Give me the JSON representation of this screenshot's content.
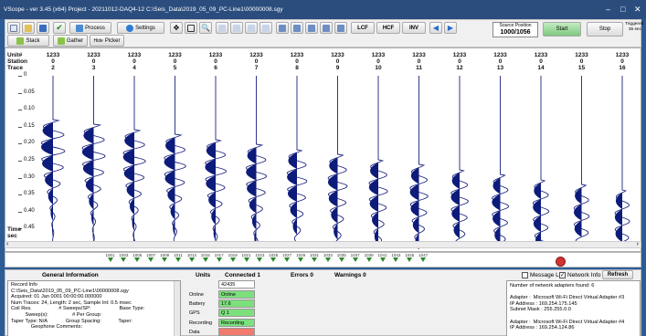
{
  "window": {
    "title": "VScope - ver 3.45 (x64)    Project - 20211012-DAQ4-12    C:\\Seis_Data\\2019_05_09_PC-Line1\\00000008.sgy"
  },
  "toolbar": {
    "process": "Process",
    "settings": "Settings",
    "lcf": "LCF",
    "hcf": "HCF",
    "inv": "INV",
    "source_label": "Source Position",
    "source_value": "1000/1056",
    "start": "Start",
    "stop": "Stop",
    "triggered": "Triggered",
    "triggered_time": "35 sec",
    "stack": "Stack",
    "gather": "Gather",
    "picker": "Picker",
    "hide": "Hide"
  },
  "trace_header": {
    "labels": [
      "Unit#",
      "Station",
      "Trace"
    ],
    "traces": [
      {
        "unit": "1233",
        "station": "0",
        "trace": "2"
      },
      {
        "unit": "1233",
        "station": "0",
        "trace": "3"
      },
      {
        "unit": "1233",
        "station": "0",
        "trace": "4"
      },
      {
        "unit": "1233",
        "station": "0",
        "trace": "5"
      },
      {
        "unit": "1233",
        "station": "0",
        "trace": "6"
      },
      {
        "unit": "1233",
        "station": "0",
        "trace": "7"
      },
      {
        "unit": "1233",
        "station": "0",
        "trace": "8"
      },
      {
        "unit": "1233",
        "station": "0",
        "trace": "9"
      },
      {
        "unit": "1233",
        "station": "0",
        "trace": "10"
      },
      {
        "unit": "1233",
        "station": "0",
        "trace": "11"
      },
      {
        "unit": "1233",
        "station": "0",
        "trace": "12"
      },
      {
        "unit": "1233",
        "station": "0",
        "trace": "13"
      },
      {
        "unit": "1233",
        "station": "0",
        "trace": "14"
      },
      {
        "unit": "1233",
        "station": "0",
        "trace": "15"
      },
      {
        "unit": "1233",
        "station": "0",
        "trace": "16"
      }
    ]
  },
  "time_axis": {
    "ticks": [
      "0",
      "0.05",
      "0.10",
      "0.15",
      "0.20",
      "0.25",
      "0.30",
      "0.35",
      "0.40",
      "0.45"
    ],
    "label1": "Time",
    "label2": "sec"
  },
  "markers": [
    "1001",
    "1003",
    "1005",
    "1007",
    "1009",
    "1011",
    "1013",
    "1015",
    "1017",
    "1019",
    "1021",
    "1023",
    "1025",
    "1027",
    "1029",
    "1031",
    "1033",
    "1035",
    "1037",
    "1039",
    "1041",
    "1043",
    "1045",
    "1047"
  ],
  "bottom": {
    "general_info_title": "General Information",
    "units_title": "Units",
    "connected": "Connected 1",
    "errors": "Errors 0",
    "warnings": "Warnings 0",
    "message_list": "Message List",
    "network_info": "Network Info",
    "refresh": "Refresh",
    "info_lines": [
      "Record Info",
      "C:\\Seis_Data\\2019_05_09_PC-Line1\\00000008.sgy",
      "Acquired: 01 Jan 0001 00:00:00.000000",
      "Num Traces: 24, Length: 2 sec, Sample Int: 0.5 msec",
      "Coil Res.                   # Sweeps/SP:                    Base Type:",
      "          Sweep(s):                 # Per Group:",
      "Taper Type: N/A             Group Spacing:            Taper:",
      "              Geophone Comments:"
    ],
    "unit_value": "42435",
    "status_rows": [
      {
        "key": "Online",
        "value": "Online",
        "color": "#7ce07c"
      },
      {
        "key": "Battery",
        "value": "17.6",
        "color": "#7ce07c"
      },
      {
        "key": "GPS",
        "value": "Q 1",
        "color": "#7ce07c"
      },
      {
        "key": "Recording",
        "value": "Recording",
        "color": "#7ce07c"
      },
      {
        "key": "Data",
        "value": "",
        "color": "#f07a6e"
      }
    ],
    "network_lines": [
      "Number of network adapters found: 6",
      "",
      "Adapter :  Microsoft Wi-Fi Direct Virtual Adapter #3",
      "IP Address : 169.254.175.145",
      "Subnet Mask : 255.255.0.0",
      "",
      "Adapter :  Microsoft Wi-Fi Direct Virtual Adapter #4",
      "IP Address : 169.254.124.86"
    ]
  }
}
